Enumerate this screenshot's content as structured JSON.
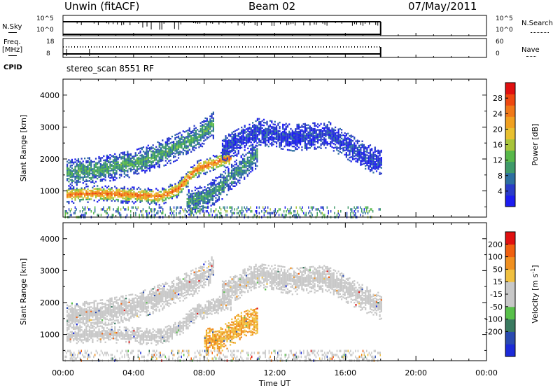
{
  "header": {
    "station": "Unwin (fitACF)",
    "beam": "Beam 02",
    "date": "07/May/2011"
  },
  "summary": {
    "nsky_label": "N.Sky",
    "nsky_ticks": [
      "10^5",
      "10^0"
    ],
    "freq_label_1": "Freq.",
    "freq_label_2": "[MHz]",
    "freq_ticks": [
      "18",
      "8"
    ],
    "cpid_label": "CPID",
    "cpid_value": "stereo_scan 8551 RF",
    "nsearch_label": "N.Search",
    "nsearch_ticks": [
      "10^5",
      "10^0"
    ],
    "nave_label": "Nave",
    "nave_ticks": [
      "60",
      "0"
    ]
  },
  "chart_data": [
    {
      "type": "heatmap",
      "title": "",
      "xlabel": "Time UT",
      "ylabel": "Slant Range [km]",
      "x_ticks": [
        "00:00",
        "04:00",
        "08:00",
        "12:00",
        "16:00",
        "20:00",
        "00:00"
      ],
      "x_range_hours": [
        0,
        24
      ],
      "y_ticks": [
        1000,
        2000,
        3000,
        4000
      ],
      "ylim": [
        180,
        4500
      ],
      "colorbar": {
        "label": "Power [dB]",
        "ticks": [
          "4",
          "8",
          "12",
          "16",
          "20",
          "24",
          "28"
        ],
        "colors": [
          "#1c1cf0",
          "#2a3cc8",
          "#2d6fa0",
          "#3f9a6a",
          "#58b84a",
          "#a8c43a",
          "#e8c030",
          "#f0a020",
          "#f07818",
          "#ee4810",
          "#e01010"
        ]
      },
      "regions": [
        {
          "name": "main_band",
          "points": [
            [
              0.2,
              900
            ],
            [
              2,
              950
            ],
            [
              4,
              900
            ],
            [
              5.5,
              850
            ],
            [
              6.5,
              1100
            ],
            [
              7.5,
              1700
            ],
            [
              9,
              2000
            ],
            [
              9.5,
              2050
            ]
          ],
          "level": 0.85
        },
        {
          "name": "upper_band",
          "points": [
            [
              0.2,
              1600
            ],
            [
              2,
              1700
            ],
            [
              4,
              1900
            ],
            [
              6,
              2300
            ],
            [
              7.5,
              2700
            ],
            [
              8.5,
              3100
            ]
          ],
          "level": 0.35
        },
        {
          "name": "late_arc",
          "points": [
            [
              9,
              2300
            ],
            [
              11,
              2900
            ],
            [
              13,
              2700
            ],
            [
              15,
              2800
            ],
            [
              16.5,
              2300
            ],
            [
              18,
              1900
            ]
          ],
          "level": 0.1
        },
        {
          "name": "mid_patch",
          "points": [
            [
              7,
              700
            ],
            [
              8,
              800
            ],
            [
              9,
              1200
            ],
            [
              10,
              1700
            ],
            [
              11,
              2200
            ]
          ],
          "level": 0.3
        }
      ],
      "data_end_hour": 18
    },
    {
      "type": "heatmap",
      "title": "",
      "xlabel": "Time UT",
      "ylabel": "Slant Range [km]",
      "x_ticks": [
        "00:00",
        "04:00",
        "08:00",
        "12:00",
        "16:00",
        "20:00",
        "00:00"
      ],
      "x_range_hours": [
        0,
        24
      ],
      "y_ticks": [
        1000,
        2000,
        3000,
        4000
      ],
      "ylim": [
        180,
        4500
      ],
      "colorbar": {
        "label": "Velocity [m s^-1]",
        "ticks": [
          "200",
          "100",
          "50",
          "15",
          "-15",
          "-50",
          "-100",
          "-200"
        ],
        "colors": [
          "#1c2ad8",
          "#2a4ab0",
          "#3a7a60",
          "#58c04a",
          "#c8c8c8",
          "#c8c8c8",
          "#f0c040",
          "#f09020",
          "#f06010",
          "#e01010"
        ]
      },
      "regions": [
        {
          "name": "main_band",
          "points": [
            [
              0.2,
              1000
            ],
            [
              2,
              1050
            ],
            [
              4,
              1000
            ],
            [
              5.5,
              950
            ],
            [
              6.5,
              1200
            ],
            [
              7.5,
              1700
            ],
            [
              9,
              2000
            ],
            [
              9.5,
              2050
            ]
          ],
          "level": 0.5
        },
        {
          "name": "upper_band",
          "points": [
            [
              0.2,
              1600
            ],
            [
              2,
              1700
            ],
            [
              4,
              1900
            ],
            [
              6,
              2300
            ],
            [
              7.5,
              2700
            ],
            [
              8.5,
              3100
            ]
          ],
          "level": 0.5
        },
        {
          "name": "late_arc",
          "points": [
            [
              9,
              2300
            ],
            [
              11,
              2900
            ],
            [
              13,
              2700
            ],
            [
              15,
              2800
            ],
            [
              16.5,
              2300
            ],
            [
              18,
              1900
            ]
          ],
          "level": 0.5
        },
        {
          "name": "neg_patch",
          "points": [
            [
              8,
              800
            ],
            [
              9,
              900
            ],
            [
              10,
              1300
            ],
            [
              11,
              1500
            ]
          ],
          "level": 0.72
        }
      ],
      "data_end_hour": 18
    }
  ]
}
